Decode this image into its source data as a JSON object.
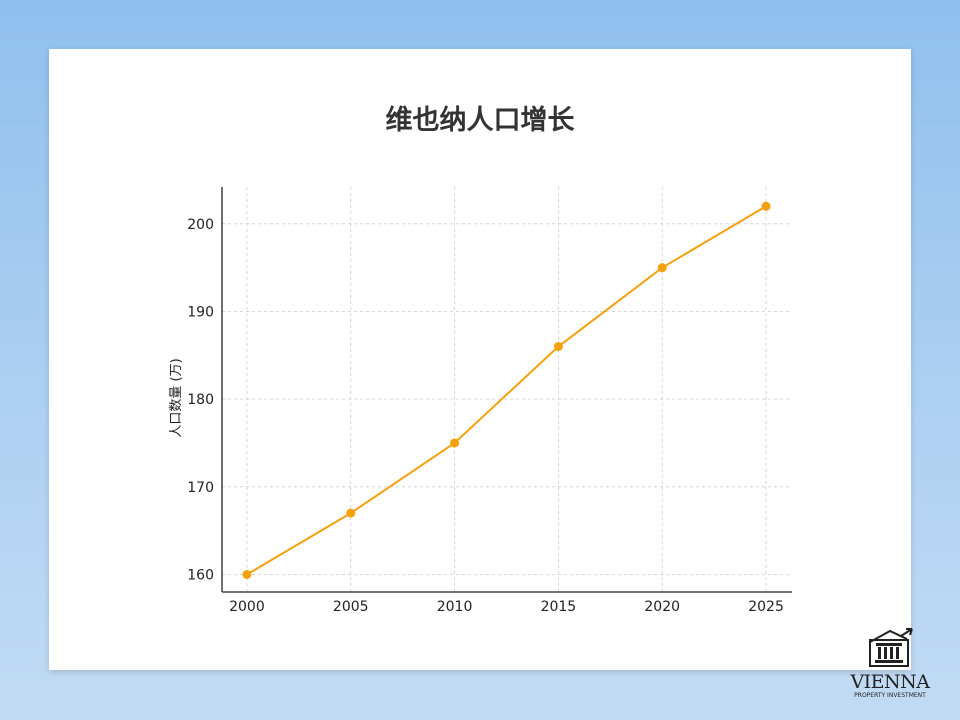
{
  "chart_data": {
    "type": "line",
    "title": "维也纳人口增长",
    "xlabel": "",
    "ylabel": "人口数量 (万)",
    "x": [
      2000,
      2005,
      2010,
      2015,
      2020,
      2025
    ],
    "series": [
      {
        "values": [
          160,
          167,
          175,
          186,
          195,
          202
        ],
        "color": "#f5a10f"
      }
    ],
    "xticks": [
      2000,
      2005,
      2010,
      2015,
      2020,
      2025
    ],
    "yticks": [
      160,
      170,
      180,
      190,
      200
    ],
    "xlim": [
      1998.8,
      2026.25
    ],
    "ylim": [
      158,
      204.2
    ],
    "grid": true,
    "marker": "circle"
  },
  "logo": {
    "name": "VIENNA",
    "tagline": "PROPERTY INVESTMENT",
    "icon": "bank-building-growth-arrow-icon"
  }
}
